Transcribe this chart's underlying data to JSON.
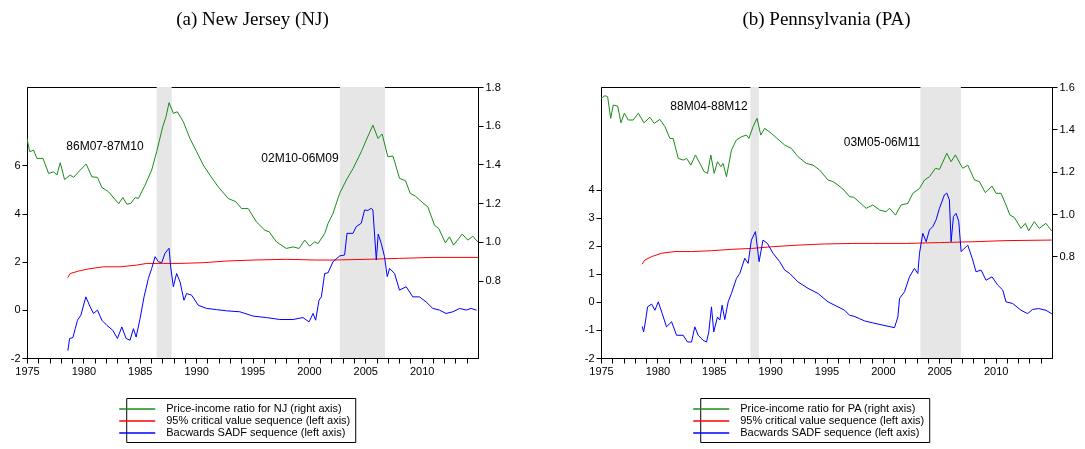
{
  "chart_data": [
    {
      "type": "line",
      "title": "(a) New Jersey (NJ)",
      "xlim": [
        1975,
        2015
      ],
      "xticks": [
        1975,
        {
          "value": 1976,
          "label": null
        },
        {
          "value": 1977,
          "label": null
        },
        {
          "value": 1978,
          "label": null
        },
        {
          "value": 1979,
          "label": null
        },
        1980,
        {
          "value": 1981,
          "label": null
        },
        {
          "value": 1982,
          "label": null
        },
        {
          "value": 1983,
          "label": null
        },
        {
          "value": 1984,
          "label": null
        },
        1985,
        {
          "value": 1986,
          "label": null
        },
        {
          "value": 1987,
          "label": null
        },
        {
          "value": 1988,
          "label": null
        },
        {
          "value": 1989,
          "label": null
        },
        1990,
        {
          "value": 1991,
          "label": null
        },
        {
          "value": 1992,
          "label": null
        },
        {
          "value": 1993,
          "label": null
        },
        {
          "value": 1994,
          "label": null
        },
        1995,
        {
          "value": 1996,
          "label": null
        },
        {
          "value": 1997,
          "label": null
        },
        {
          "value": 1998,
          "label": null
        },
        {
          "value": 1999,
          "label": null
        },
        2000,
        {
          "value": 2001,
          "label": null
        },
        {
          "value": 2002,
          "label": null
        },
        {
          "value": 2003,
          "label": null
        },
        {
          "value": 2004,
          "label": null
        },
        2005,
        {
          "value": 2006,
          "label": null
        },
        {
          "value": 2007,
          "label": null
        },
        {
          "value": 2008,
          "label": null
        },
        {
          "value": 2009,
          "label": null
        },
        2010,
        {
          "value": 2011,
          "label": null
        },
        {
          "value": 2012,
          "label": null
        },
        {
          "value": 2013,
          "label": null
        },
        {
          "value": 2014,
          "label": null
        }
      ],
      "ylim": [
        -2,
        9.26
      ],
      "yticks": [
        -2,
        0,
        2,
        4,
        6
      ],
      "y2lim": [
        0.4,
        1.8
      ],
      "y2ticks": [
        0.8,
        {
          "value": 1,
          "label": "1.0"
        },
        1.2,
        1.4,
        1.6,
        1.8
      ],
      "legend": "bottom",
      "bands": [
        {
          "axis": "x",
          "from": 1986.5,
          "to": 1987.83,
          "color": "#e6e6e6"
        },
        {
          "axis": "x",
          "from": 2002.75,
          "to": 2006.75,
          "color": "#e6e6e6"
        }
      ],
      "annotations": [
        "86M07-87M10",
        "02M10-06M09"
      ],
      "series": [
        {
          "name": "Price-income ratio for NJ (right axis)",
          "color": "#1a8c1a",
          "axis": "y2",
          "x": [
            1975.0,
            1975.24,
            1975.59,
            1975.88,
            1976.42,
            1976.92,
            1977.36,
            1977.65,
            1977.95,
            1978.33,
            1978.83,
            1979.13,
            1979.72,
            1980.25,
            1980.75,
            1981.25,
            1981.64,
            1982.23,
            1982.73,
            1983.14,
            1983.5,
            1983.85,
            1984.2,
            1984.59,
            1984.88,
            1985.47,
            1986.06,
            1986.5,
            1987.04,
            1987.33,
            1987.6,
            1987.98,
            1988.33,
            1988.86,
            1989.45,
            1990.04,
            1990.63,
            1991.22,
            1991.96,
            1992.85,
            1993.53,
            1994.03,
            1994.62,
            1995.35,
            1996.09,
            1996.48,
            1997.12,
            1998.0,
            1998.6,
            1999.13,
            1999.63,
            2000.07,
            2000.52,
            2000.81,
            2001.4,
            2001.7,
            2002.14,
            2002.73,
            2003.32,
            2003.92,
            2004.65,
            2005.09,
            2005.68,
            2006.13,
            2006.5,
            2007.0,
            2007.46,
            2008.04,
            2008.57,
            2008.99,
            2009.45,
            2010.1,
            2010.55,
            2011.14,
            2011.52,
            2012.11,
            2012.47,
            2012.83,
            2013.6,
            2014.1,
            2014.54,
            2014.98
          ],
          "values": [
            1.534,
            1.466,
            1.474,
            1.431,
            1.431,
            1.353,
            1.362,
            1.345,
            1.409,
            1.322,
            1.345,
            1.333,
            1.371,
            1.402,
            1.336,
            1.333,
            1.281,
            1.259,
            1.224,
            1.198,
            1.229,
            1.195,
            1.198,
            1.229,
            1.224,
            1.293,
            1.371,
            1.466,
            1.595,
            1.647,
            1.719,
            1.664,
            1.672,
            1.621,
            1.534,
            1.466,
            1.397,
            1.345,
            1.284,
            1.224,
            1.207,
            1.172,
            1.172,
            1.103,
            1.06,
            1.052,
            1.0,
            0.966,
            0.974,
            0.966,
            1.009,
            0.978,
            1.0,
            0.991,
            1.043,
            1.095,
            1.147,
            1.25,
            1.319,
            1.379,
            1.466,
            1.526,
            1.603,
            1.534,
            1.557,
            1.44,
            1.443,
            1.328,
            1.316,
            1.25,
            1.236,
            1.202,
            1.181,
            1.086,
            1.069,
            0.995,
            1.026,
            0.983,
            1.04,
            1.009,
            1.029,
            1.0
          ]
        },
        {
          "name": "95% critical value sequence (left axis)",
          "color": "#ff0000",
          "x": [
            1978.63,
            1978.83,
            1979.57,
            1980.31,
            1981.78,
            1983.26,
            1984.73,
            1985.62,
            1987.09,
            1988.57,
            1990.63,
            1992.7,
            1995.06,
            1998.0,
            2000.66,
            2002.14,
            2005.09,
            2008.04,
            2011.0,
            2014.98
          ],
          "values": [
            1.35,
            1.51,
            1.61,
            1.69,
            1.79,
            1.79,
            1.86,
            1.93,
            1.93,
            1.93,
            1.96,
            2.03,
            2.07,
            2.1,
            2.07,
            2.07,
            2.1,
            2.14,
            2.18,
            2.18
          ]
        },
        {
          "name": "Bacwards SADF sequence (left axis)",
          "color": "#0000ff",
          "x": [
            1978.63,
            1978.78,
            1979.07,
            1979.28,
            1979.48,
            1979.78,
            1980.22,
            1980.6,
            1980.9,
            1981.25,
            1981.64,
            1982.08,
            1982.61,
            1983.02,
            1983.41,
            1983.79,
            1984.14,
            1984.44,
            1984.68,
            1985.03,
            1985.38,
            1985.77,
            1986.06,
            1986.36,
            1986.65,
            1986.95,
            1987.24,
            1987.6,
            1987.74,
            1987.98,
            1988.27,
            1988.57,
            1988.92,
            1989.16,
            1989.6,
            1990.19,
            1990.93,
            1991.81,
            1992.7,
            1993.88,
            1995.06,
            1996.24,
            1997.42,
            1998.6,
            1999.48,
            2000.01,
            2000.37,
            2000.6,
            2000.9,
            2001.11,
            2001.4,
            2001.7,
            2002.14,
            2002.73,
            2003.17,
            2003.38,
            2003.91,
            2004.2,
            2004.65,
            2004.94,
            2005.24,
            2005.53,
            2005.68,
            2005.98,
            2006.15,
            2006.42,
            2006.71,
            2006.95,
            2007.16,
            2007.6,
            2008.04,
            2008.63,
            2009.22,
            2009.81,
            2010.4,
            2010.99,
            2011.58,
            2012.17,
            2012.77,
            2013.36,
            2013.95,
            2014.39,
            2014.84
          ],
          "values": [
            -1.68,
            -1.19,
            -1.15,
            -0.78,
            -0.43,
            -0.22,
            0.54,
            0.13,
            -0.15,
            -0.01,
            -0.43,
            -0.64,
            -0.85,
            -1.19,
            -0.71,
            -1.19,
            -1.26,
            -0.78,
            -1.13,
            -0.36,
            0.54,
            1.31,
            1.72,
            2.21,
            2.0,
            1.96,
            2.35,
            2.56,
            1.79,
            0.96,
            1.51,
            1.17,
            0.4,
            0.68,
            0.61,
            0.19,
            0.06,
            0.01,
            -0.04,
            -0.08,
            -0.26,
            -0.32,
            -0.4,
            -0.4,
            -0.32,
            -0.5,
            -0.15,
            -0.43,
            0.4,
            0.54,
            1.51,
            1.54,
            2.0,
            2.24,
            2.28,
            3.18,
            3.18,
            3.46,
            3.6,
            4.15,
            4.13,
            4.22,
            4.15,
            2.07,
            3.15,
            2.76,
            2.21,
            1.38,
            1.72,
            1.51,
            0.82,
            0.96,
            0.54,
            0.54,
            0.33,
            0.06,
            -0.01,
            -0.15,
            -0.08,
            0.06,
            -0.01,
            0.06,
            -0.01
          ]
        }
      ]
    },
    {
      "type": "line",
      "title": "(b) Pennsylvania (PA)",
      "xlim": [
        1975,
        2015
      ],
      "xticks": [
        1975,
        {
          "value": 1976,
          "label": null
        },
        {
          "value": 1977,
          "label": null
        },
        {
          "value": 1978,
          "label": null
        },
        {
          "value": 1979,
          "label": null
        },
        1980,
        {
          "value": 1981,
          "label": null
        },
        {
          "value": 1982,
          "label": null
        },
        {
          "value": 1983,
          "label": null
        },
        {
          "value": 1984,
          "label": null
        },
        1985,
        {
          "value": 1986,
          "label": null
        },
        {
          "value": 1987,
          "label": null
        },
        {
          "value": 1988,
          "label": null
        },
        {
          "value": 1989,
          "label": null
        },
        1990,
        {
          "value": 1991,
          "label": null
        },
        {
          "value": 1992,
          "label": null
        },
        {
          "value": 1993,
          "label": null
        },
        {
          "value": 1994,
          "label": null
        },
        1995,
        {
          "value": 1996,
          "label": null
        },
        {
          "value": 1997,
          "label": null
        },
        {
          "value": 1998,
          "label": null
        },
        {
          "value": 1999,
          "label": null
        },
        2000,
        {
          "value": 2001,
          "label": null
        },
        {
          "value": 2002,
          "label": null
        },
        {
          "value": 2003,
          "label": null
        },
        {
          "value": 2004,
          "label": null
        },
        2005,
        {
          "value": 2006,
          "label": null
        },
        {
          "value": 2007,
          "label": null
        },
        {
          "value": 2008,
          "label": null
        },
        {
          "value": 2009,
          "label": null
        },
        2010,
        {
          "value": 2011,
          "label": null
        },
        {
          "value": 2012,
          "label": null
        },
        {
          "value": 2013,
          "label": null
        },
        {
          "value": 2014,
          "label": null
        }
      ],
      "ylim": [
        -2,
        7.65
      ],
      "yticks": [
        -2,
        -1,
        0,
        1,
        2,
        3,
        4
      ],
      "y2lim": [
        0.32,
        1.6
      ],
      "y2ticks": [
        0.8,
        {
          "value": 1,
          "label": "1.0"
        },
        1.2,
        1.4,
        1.6
      ],
      "legend": "bottom",
      "bands": [
        {
          "axis": "x",
          "from": 1988.25,
          "to": 1989.0,
          "color": "#e6e6e6"
        },
        {
          "axis": "x",
          "from": 2003.33,
          "to": 2006.92,
          "color": "#e6e6e6"
        }
      ],
      "annotations": [
        "88M04-88M12",
        "03M05-06M11"
      ],
      "series": [
        {
          "name": "Price-income ratio for PA (right axis)",
          "color": "#1a8c1a",
          "axis": "y2",
          "x": [
            1975.0,
            1975.35,
            1975.59,
            1975.86,
            1976.09,
            1976.48,
            1976.77,
            1977.07,
            1977.42,
            1977.86,
            1978.31,
            1978.81,
            1979.34,
            1979.72,
            1980.22,
            1980.67,
            1981.11,
            1981.4,
            1981.85,
            1982.29,
            1982.59,
            1982.97,
            1983.38,
            1983.77,
            1984.15,
            1984.45,
            1984.74,
            1985.04,
            1985.33,
            1985.63,
            1985.83,
            1986.13,
            1986.57,
            1987.01,
            1987.46,
            1987.9,
            1988.11,
            1988.49,
            1988.84,
            1989.17,
            1989.52,
            1990.11,
            1990.7,
            1991.29,
            1991.88,
            1992.47,
            1993.21,
            1993.8,
            1994.39,
            1995.13,
            1995.57,
            1996.02,
            1996.55,
            1997.05,
            1997.43,
            1998.52,
            1999.11,
            1999.7,
            2000.29,
            2000.59,
            2001.12,
            2001.62,
            2002.21,
            2002.66,
            2003.25,
            2003.7,
            2004.13,
            2004.66,
            2005.02,
            2005.67,
            2006.05,
            2006.43,
            2007.08,
            2007.53,
            2008.12,
            2008.56,
            2009.09,
            2009.68,
            2010.04,
            2010.48,
            2010.92,
            2011.27,
            2011.66,
            2012.25,
            2012.63,
            2012.93,
            2013.43,
            2013.87,
            2014.46,
            2014.96
          ],
          "values": [
            1.546,
            1.559,
            1.554,
            1.452,
            1.515,
            1.51,
            1.431,
            1.476,
            1.444,
            1.444,
            1.476,
            1.431,
            1.457,
            1.428,
            1.447,
            1.413,
            1.357,
            1.357,
            1.263,
            1.255,
            1.263,
            1.231,
            1.279,
            1.239,
            1.2,
            1.192,
            1.279,
            1.192,
            1.247,
            1.224,
            1.239,
            1.176,
            1.302,
            1.35,
            1.365,
            1.373,
            1.357,
            1.413,
            1.452,
            1.373,
            1.405,
            1.381,
            1.353,
            1.326,
            1.31,
            1.271,
            1.239,
            1.231,
            1.208,
            1.161,
            1.153,
            1.137,
            1.113,
            1.082,
            1.079,
            1.027,
            1.043,
            1.019,
            1.011,
            1.027,
            0.995,
            1.043,
            1.05,
            1.098,
            1.121,
            1.161,
            1.176,
            1.216,
            1.211,
            1.287,
            1.247,
            1.279,
            1.216,
            1.231,
            1.161,
            1.153,
            1.101,
            1.132,
            1.098,
            1.098,
            1.043,
            0.995,
            0.984,
            0.932,
            0.956,
            0.921,
            0.964,
            0.932,
            0.956,
            0.921
          ]
        },
        {
          "name": "95% critical value sequence (left axis)",
          "color": "#ff0000",
          "x": [
            1978.66,
            1978.9,
            1979.49,
            1980.37,
            1981.55,
            1983.03,
            1984.8,
            1986.57,
            1988.34,
            1990.11,
            1992.47,
            1994.83,
            1997.34,
            1999.11,
            2002.07,
            2005.02,
            2007.97,
            2010.92,
            2014.96
          ],
          "values": [
            1.35,
            1.49,
            1.61,
            1.73,
            1.79,
            1.79,
            1.82,
            1.87,
            1.9,
            1.96,
            2.02,
            2.06,
            2.08,
            2.08,
            2.08,
            2.11,
            2.14,
            2.18,
            2.2
          ]
        },
        {
          "name": "Bacwards SADF sequence (left axis)",
          "color": "#0000ff",
          "x": [
            1978.66,
            1978.78,
            1978.96,
            1979.13,
            1979.49,
            1979.78,
            1980.08,
            1980.43,
            1980.81,
            1981.26,
            1981.7,
            1982.29,
            1982.67,
            1983.03,
            1983.32,
            1983.62,
            1984.06,
            1984.36,
            1984.56,
            1984.8,
            1985.0,
            1985.33,
            1985.54,
            1985.74,
            1985.98,
            1986.28,
            1986.57,
            1987.01,
            1987.31,
            1987.75,
            1988.05,
            1988.34,
            1988.7,
            1989.02,
            1989.37,
            1989.76,
            1990.26,
            1990.85,
            1991.29,
            1991.74,
            1992.47,
            1993.36,
            1994.24,
            1995.13,
            1996.02,
            1996.61,
            1997.05,
            1997.43,
            1997.93,
            1998.38,
            1999.11,
            2000.0,
            2001.03,
            2001.33,
            2001.48,
            2001.92,
            2002.36,
            2002.8,
            2003.1,
            2003.25,
            2003.54,
            2003.84,
            2004.13,
            2004.43,
            2004.72,
            2005.02,
            2005.46,
            2005.67,
            2005.9,
            2006.05,
            2006.26,
            2006.49,
            2006.73,
            2006.94,
            2007.53,
            2007.97,
            2008.26,
            2008.71,
            2009.15,
            2009.68,
            2010.18,
            2010.63,
            2010.92,
            2011.51,
            2012.25,
            2012.84,
            2013.28,
            2013.81,
            2014.46,
            2014.96
          ],
          "values": [
            -0.89,
            -1.07,
            -0.65,
            -0.18,
            -0.08,
            -0.3,
            0.0,
            -0.42,
            -0.89,
            -0.71,
            -1.19,
            -1.19,
            -1.43,
            -1.43,
            -0.89,
            -1.19,
            -1.37,
            -1.43,
            -1.07,
            -0.18,
            -1.07,
            -0.54,
            -0.65,
            -0.12,
            -0.63,
            0.0,
            0.3,
            0.83,
            1.01,
            1.55,
            1.37,
            2.2,
            2.5,
            1.43,
            2.2,
            2.08,
            1.73,
            1.43,
            1.13,
            1.01,
            0.71,
            0.48,
            0.3,
            0.0,
            -0.18,
            -0.3,
            -0.48,
            -0.51,
            -0.6,
            -0.68,
            -0.75,
            -0.83,
            -0.92,
            -0.54,
            0.12,
            0.36,
            0.89,
            1.19,
            1.01,
            1.73,
            2.44,
            2.14,
            2.56,
            2.68,
            2.92,
            3.33,
            3.81,
            3.87,
            3.63,
            2.14,
            3.04,
            3.15,
            2.86,
            1.79,
            2.02,
            1.49,
            1.07,
            1.13,
            0.77,
            0.89,
            0.6,
            0.42,
            0.0,
            -0.06,
            -0.3,
            -0.42,
            -0.27,
            -0.24,
            -0.3,
            -0.42
          ]
        }
      ]
    }
  ]
}
